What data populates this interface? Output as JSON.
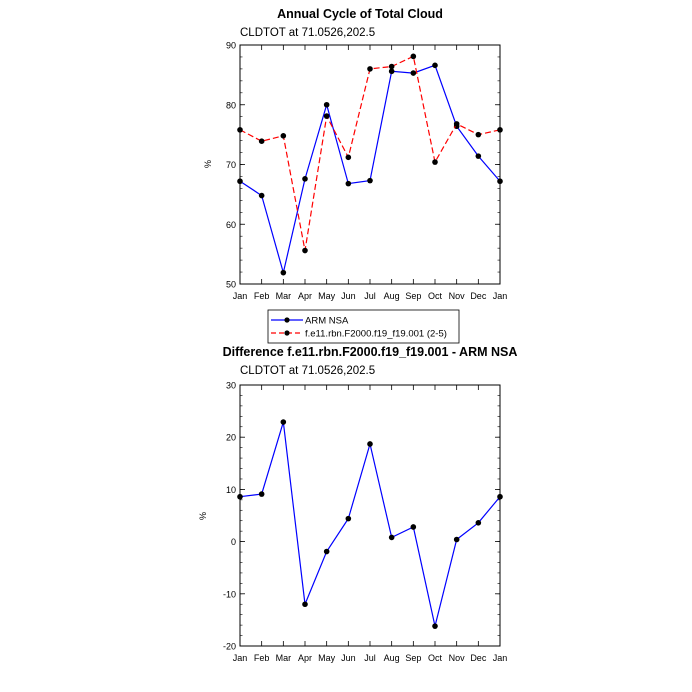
{
  "chart_data": [
    {
      "type": "line",
      "title": "Annual Cycle of Total Cloud",
      "subtitle": "CLDTOT at 71.0526,202.5",
      "xlabel": "",
      "ylabel": "%",
      "categories": [
        "Jan",
        "Feb",
        "Mar",
        "Apr",
        "May",
        "Jun",
        "Jul",
        "Aug",
        "Sep",
        "Oct",
        "Nov",
        "Dec",
        "Jan"
      ],
      "ylim": [
        50,
        90
      ],
      "yticks": [
        50,
        60,
        70,
        80,
        90
      ],
      "series": [
        {
          "name": "ARM NSA",
          "color": "#0000ff",
          "dashed": false,
          "values": [
            67.2,
            64.8,
            51.9,
            67.6,
            80.0,
            66.8,
            67.3,
            85.6,
            85.3,
            86.6,
            76.4,
            71.4,
            67.2
          ]
        },
        {
          "name": "f.e11.rbn.F2000.f19_f19.001 (2-5)",
          "color": "#ff0000",
          "dashed": true,
          "values": [
            75.8,
            73.9,
            74.8,
            55.6,
            78.1,
            71.2,
            86.0,
            86.4,
            88.1,
            70.4,
            76.8,
            75.0,
            75.8
          ]
        }
      ],
      "legend": "bottom"
    },
    {
      "type": "line",
      "title": "Difference f.e11.rbn.F2000.f19_f19.001 - ARM NSA",
      "subtitle": "CLDTOT at 71.0526,202.5",
      "xlabel": "",
      "ylabel": "%",
      "categories": [
        "Jan",
        "Feb",
        "Mar",
        "Apr",
        "May",
        "Jun",
        "Jul",
        "Aug",
        "Sep",
        "Oct",
        "Nov",
        "Dec",
        "Jan"
      ],
      "ylim": [
        -20,
        30
      ],
      "yticks": [
        -20,
        -10,
        0,
        10,
        20,
        30
      ],
      "series": [
        {
          "name": "Difference",
          "color": "#0000ff",
          "dashed": false,
          "values": [
            8.6,
            9.1,
            22.9,
            -12.0,
            -1.9,
            4.4,
            18.7,
            0.8,
            2.8,
            -16.2,
            0.4,
            3.6,
            8.6
          ]
        }
      ]
    }
  ]
}
